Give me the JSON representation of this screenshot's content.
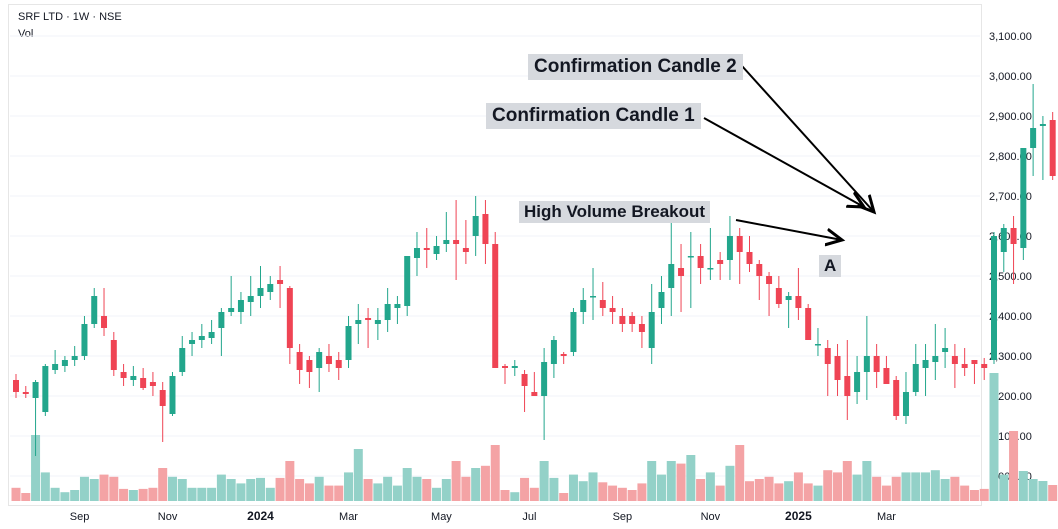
{
  "header": {
    "symbol_line": "SRF LTD · 1W · NSE",
    "volume_label": "Vol"
  },
  "annotations": {
    "candle2": "Confirmation Candle 2",
    "candle1": "Confirmation Candle 1",
    "breakout": "High Volume Breakout",
    "point_a": "A"
  },
  "colors": {
    "up": "#22a68c",
    "down": "#ef4454",
    "vol_up": "#93d1c8",
    "vol_down": "#f4a3a5",
    "grid": "#f0f3fa",
    "axis_text": "#131722"
  },
  "chart_data": {
    "type": "candlestick",
    "ylim": [
      2050,
      3150
    ],
    "y_ticks": [
      "3,100.00",
      "3,000.00",
      "2,900.00",
      "2,800.00",
      "2,700.00",
      "2,600.00",
      "2,500.00",
      "2,400.00",
      "2,300.00",
      "2,200.00",
      "2,100.00",
      "2,000.00"
    ],
    "y_tick_values": [
      3100,
      3000,
      2900,
      2800,
      2700,
      2600,
      2500,
      2400,
      2300,
      2200,
      2100,
      2000
    ],
    "x_ticks": [
      "Sep",
      "Nov",
      "2024",
      "Mar",
      "May",
      "Jul",
      "Sep",
      "Nov",
      "2025",
      "Mar"
    ],
    "x_tick_index": [
      6.5,
      15.5,
      25,
      34,
      43.5,
      52.5,
      62,
      71,
      80,
      89
    ],
    "candles": [
      [
        2240,
        2255,
        2195,
        2210
      ],
      [
        2210,
        2225,
        2195,
        2205
      ],
      [
        2195,
        2240,
        2050,
        2235
      ],
      [
        2160,
        2280,
        2150,
        2275
      ],
      [
        2265,
        2315,
        2255,
        2280
      ],
      [
        2275,
        2300,
        2260,
        2290
      ],
      [
        2290,
        2325,
        2275,
        2300
      ],
      [
        2300,
        2400,
        2290,
        2380
      ],
      [
        2380,
        2470,
        2370,
        2450
      ],
      [
        2400,
        2470,
        2350,
        2370
      ],
      [
        2340,
        2360,
        2250,
        2265
      ],
      [
        2260,
        2280,
        2225,
        2245
      ],
      [
        2240,
        2275,
        2225,
        2250
      ],
      [
        2245,
        2270,
        2215,
        2220
      ],
      [
        2235,
        2260,
        2200,
        2225
      ],
      [
        2215,
        2235,
        2085,
        2175
      ],
      [
        2155,
        2260,
        2150,
        2250
      ],
      [
        2260,
        2350,
        2250,
        2320
      ],
      [
        2330,
        2360,
        2300,
        2340
      ],
      [
        2340,
        2380,
        2320,
        2350
      ],
      [
        2345,
        2390,
        2330,
        2360
      ],
      [
        2370,
        2420,
        2300,
        2410
      ],
      [
        2410,
        2500,
        2400,
        2420
      ],
      [
        2410,
        2460,
        2380,
        2440
      ],
      [
        2435,
        2500,
        2400,
        2450
      ],
      [
        2450,
        2525,
        2420,
        2470
      ],
      [
        2460,
        2500,
        2440,
        2480
      ],
      [
        2490,
        2525,
        2420,
        2480
      ],
      [
        2470,
        2475,
        2280,
        2320
      ],
      [
        2310,
        2330,
        2230,
        2265
      ],
      [
        2290,
        2300,
        2220,
        2260
      ],
      [
        2270,
        2320,
        2210,
        2310
      ],
      [
        2300,
        2330,
        2260,
        2280
      ],
      [
        2290,
        2310,
        2240,
        2270
      ],
      [
        2290,
        2400,
        2270,
        2375
      ],
      [
        2380,
        2430,
        2330,
        2390
      ],
      [
        2395,
        2420,
        2320,
        2390
      ],
      [
        2380,
        2420,
        2340,
        2390
      ],
      [
        2390,
        2470,
        2360,
        2430
      ],
      [
        2420,
        2450,
        2380,
        2430
      ],
      [
        2425,
        2550,
        2400,
        2550
      ],
      [
        2545,
        2610,
        2500,
        2570
      ],
      [
        2570,
        2620,
        2520,
        2565
      ],
      [
        2555,
        2600,
        2540,
        2575
      ],
      [
        2580,
        2660,
        2560,
        2590
      ],
      [
        2590,
        2690,
        2490,
        2580
      ],
      [
        2570,
        2640,
        2530,
        2560
      ],
      [
        2600,
        2700,
        2550,
        2650
      ],
      [
        2655,
        2690,
        2530,
        2580
      ],
      [
        2580,
        2610,
        2280,
        2270
      ],
      [
        2275,
        2280,
        2230,
        2270
      ],
      [
        2270,
        2290,
        2250,
        2275
      ],
      [
        2255,
        2265,
        2160,
        2225
      ],
      [
        2210,
        2260,
        2200,
        2200
      ],
      [
        2200,
        2320,
        2090,
        2285
      ],
      [
        2280,
        2350,
        2245,
        2340
      ],
      [
        2305,
        2310,
        2280,
        2300
      ],
      [
        2310,
        2420,
        2300,
        2410
      ],
      [
        2410,
        2470,
        2380,
        2440
      ],
      [
        2450,
        2520,
        2390,
        2450
      ],
      [
        2440,
        2485,
        2400,
        2420
      ],
      [
        2420,
        2450,
        2380,
        2410
      ],
      [
        2400,
        2420,
        2360,
        2380
      ],
      [
        2400,
        2410,
        2360,
        2380
      ],
      [
        2380,
        2400,
        2320,
        2360
      ],
      [
        2320,
        2480,
        2280,
        2410
      ],
      [
        2420,
        2500,
        2380,
        2460
      ],
      [
        2470,
        2640,
        2400,
        2530
      ],
      [
        2520,
        2580,
        2410,
        2500
      ],
      [
        2550,
        2610,
        2420,
        2550
      ],
      [
        2550,
        2580,
        2480,
        2520
      ],
      [
        2520,
        2620,
        2490,
        2520
      ],
      [
        2540,
        2560,
        2490,
        2530
      ],
      [
        2540,
        2650,
        2490,
        2600
      ],
      [
        2600,
        2620,
        2480,
        2560
      ],
      [
        2560,
        2600,
        2510,
        2530
      ],
      [
        2530,
        2540,
        2440,
        2500
      ],
      [
        2500,
        2510,
        2400,
        2480
      ],
      [
        2470,
        2500,
        2420,
        2430
      ],
      [
        2440,
        2460,
        2370,
        2450
      ],
      [
        2450,
        2520,
        2390,
        2420
      ],
      [
        2420,
        2430,
        2350,
        2340
      ],
      [
        2330,
        2370,
        2300,
        2330
      ],
      [
        2320,
        2340,
        2200,
        2280
      ],
      [
        2300,
        2330,
        2200,
        2240
      ],
      [
        2250,
        2340,
        2140,
        2200
      ],
      [
        2210,
        2300,
        2180,
        2260
      ],
      [
        2260,
        2400,
        2190,
        2300
      ],
      [
        2300,
        2330,
        2220,
        2260
      ],
      [
        2270,
        2300,
        2230,
        2230
      ],
      [
        2240,
        2250,
        2140,
        2150
      ],
      [
        2150,
        2260,
        2130,
        2210
      ],
      [
        2210,
        2330,
        2200,
        2280
      ],
      [
        2270,
        2330,
        2200,
        2290
      ],
      [
        2285,
        2380,
        2240,
        2300
      ],
      [
        2310,
        2370,
        2270,
        2320
      ],
      [
        2300,
        2330,
        2220,
        2280
      ],
      [
        2280,
        2320,
        2250,
        2270
      ],
      [
        2290,
        2280,
        2230,
        2280
      ],
      [
        2280,
        2295,
        2240,
        2270
      ],
      [
        2290,
        2610,
        2280,
        2600
      ],
      [
        2560,
        2630,
        2510,
        2620
      ],
      [
        2620,
        2650,
        2480,
        2580
      ]
    ],
    "volumes": []
  }
}
